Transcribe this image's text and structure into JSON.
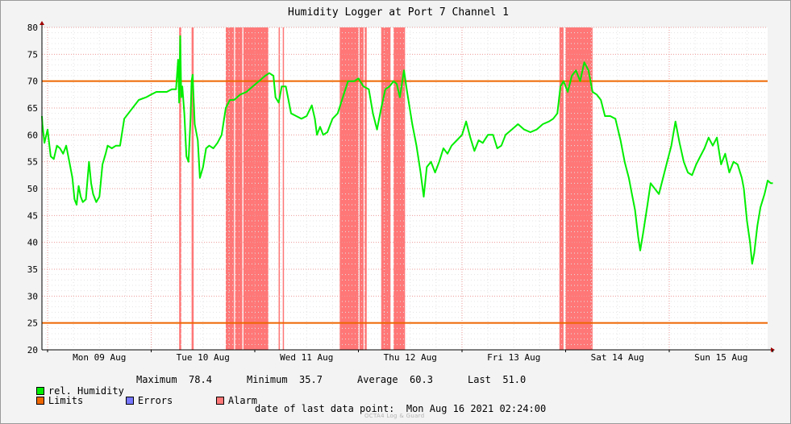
{
  "chart_data": {
    "type": "line",
    "title": "Humidity Logger at Port 7 Channel 1",
    "ylim": [
      20,
      80
    ],
    "yticks": [
      20,
      25,
      30,
      35,
      40,
      45,
      50,
      55,
      60,
      65,
      70,
      75,
      80
    ],
    "x_tick_labels": [
      "Mon 09 Aug",
      "Tue 10 Aug",
      "Wed 11 Aug",
      "Thu 12 Aug",
      "Fri 13 Aug",
      "Sat 14 Aug",
      "Sun 15 Aug"
    ],
    "x_range_days": [
      0,
      7.1
    ],
    "x_unit": "days from Mon 09 Aug 00:00",
    "grid": true,
    "limits": [
      70,
      25
    ],
    "series": [
      {
        "name": "rel. Humidity",
        "color": "#00ee00",
        "points": [
          [
            -0.08,
            63.5
          ],
          [
            -0.05,
            62
          ],
          [
            -0.03,
            58.5
          ],
          [
            0.0,
            61
          ],
          [
            0.03,
            56
          ],
          [
            0.06,
            55.5
          ],
          [
            0.09,
            58
          ],
          [
            0.12,
            57.5
          ],
          [
            0.15,
            56.5
          ],
          [
            0.18,
            58
          ],
          [
            0.21,
            55
          ],
          [
            0.24,
            52
          ],
          [
            0.26,
            48
          ],
          [
            0.28,
            47
          ],
          [
            0.3,
            50.5
          ],
          [
            0.32,
            48.5
          ],
          [
            0.34,
            47.5
          ],
          [
            0.37,
            48
          ],
          [
            0.4,
            55
          ],
          [
            0.42,
            51
          ],
          [
            0.44,
            49
          ],
          [
            0.47,
            47.5
          ],
          [
            0.5,
            48.5
          ],
          [
            0.53,
            54.5
          ],
          [
            0.56,
            56.5
          ],
          [
            0.58,
            58
          ],
          [
            0.62,
            57.5
          ],
          [
            0.66,
            58
          ],
          [
            0.7,
            58
          ],
          [
            0.74,
            63
          ],
          [
            0.8,
            64.5
          ],
          [
            0.88,
            66.5
          ],
          [
            0.95,
            67
          ],
          [
            1.0,
            67.5
          ],
          [
            1.05,
            68
          ],
          [
            1.1,
            68
          ],
          [
            1.15,
            68
          ],
          [
            1.2,
            68.5
          ],
          [
            1.24,
            68.5
          ],
          [
            1.26,
            74
          ],
          [
            1.27,
            66
          ],
          [
            1.28,
            78.4
          ],
          [
            1.29,
            67
          ],
          [
            1.3,
            69
          ],
          [
            1.32,
            64
          ],
          [
            1.34,
            56
          ],
          [
            1.36,
            55
          ],
          [
            1.38,
            63
          ],
          [
            1.39,
            70
          ],
          [
            1.4,
            71.2
          ],
          [
            1.42,
            62
          ],
          [
            1.45,
            59
          ],
          [
            1.47,
            52
          ],
          [
            1.5,
            54
          ],
          [
            1.53,
            57.5
          ],
          [
            1.56,
            58
          ],
          [
            1.6,
            57.5
          ],
          [
            1.64,
            58.5
          ],
          [
            1.68,
            60
          ],
          [
            1.72,
            65
          ],
          [
            1.76,
            66.5
          ],
          [
            1.8,
            66.5
          ],
          [
            1.86,
            67.5
          ],
          [
            1.92,
            68
          ],
          [
            1.98,
            69
          ],
          [
            2.04,
            70
          ],
          [
            2.1,
            71
          ],
          [
            2.14,
            71.5
          ],
          [
            2.18,
            71
          ],
          [
            2.2,
            67
          ],
          [
            2.23,
            66
          ],
          [
            2.26,
            69
          ],
          [
            2.3,
            69
          ],
          [
            2.33,
            66
          ],
          [
            2.35,
            64
          ],
          [
            2.4,
            63.5
          ],
          [
            2.45,
            63
          ],
          [
            2.5,
            63.5
          ],
          [
            2.55,
            65.5
          ],
          [
            2.58,
            63
          ],
          [
            2.6,
            60
          ],
          [
            2.63,
            61.5
          ],
          [
            2.66,
            60
          ],
          [
            2.7,
            60.5
          ],
          [
            2.75,
            63
          ],
          [
            2.8,
            64
          ],
          [
            2.85,
            67
          ],
          [
            2.9,
            70
          ],
          [
            2.96,
            70
          ],
          [
            3.0,
            70.5
          ],
          [
            3.05,
            69
          ],
          [
            3.1,
            68.5
          ],
          [
            3.14,
            64
          ],
          [
            3.18,
            61
          ],
          [
            3.22,
            65
          ],
          [
            3.26,
            68.5
          ],
          [
            3.3,
            69
          ],
          [
            3.34,
            70
          ],
          [
            3.37,
            69.5
          ],
          [
            3.4,
            67
          ],
          [
            3.44,
            72
          ],
          [
            3.47,
            68
          ],
          [
            3.52,
            62
          ],
          [
            3.56,
            58
          ],
          [
            3.6,
            53
          ],
          [
            3.63,
            48.5
          ],
          [
            3.66,
            54
          ],
          [
            3.7,
            55
          ],
          [
            3.74,
            53
          ],
          [
            3.78,
            55
          ],
          [
            3.82,
            57.5
          ],
          [
            3.86,
            56.5
          ],
          [
            3.9,
            58
          ],
          [
            3.95,
            59
          ],
          [
            4.0,
            60
          ],
          [
            4.04,
            62.5
          ],
          [
            4.08,
            59.5
          ],
          [
            4.12,
            57
          ],
          [
            4.16,
            59
          ],
          [
            4.2,
            58.5
          ],
          [
            4.25,
            60
          ],
          [
            4.3,
            60
          ],
          [
            4.34,
            57.5
          ],
          [
            4.38,
            58
          ],
          [
            4.42,
            60
          ],
          [
            4.48,
            61
          ],
          [
            4.54,
            62
          ],
          [
            4.6,
            61
          ],
          [
            4.66,
            60.5
          ],
          [
            4.72,
            61
          ],
          [
            4.78,
            62
          ],
          [
            4.84,
            62.5
          ],
          [
            4.88,
            63
          ],
          [
            4.92,
            64
          ],
          [
            4.95,
            69
          ],
          [
            4.98,
            70
          ],
          [
            5.02,
            68
          ],
          [
            5.06,
            71
          ],
          [
            5.1,
            72
          ],
          [
            5.14,
            70
          ],
          [
            5.18,
            73.5
          ],
          [
            5.22,
            72
          ],
          [
            5.26,
            68
          ],
          [
            5.3,
            67.5
          ],
          [
            5.34,
            66.5
          ],
          [
            5.38,
            63.5
          ],
          [
            5.43,
            63.5
          ],
          [
            5.48,
            63
          ],
          [
            5.53,
            59
          ],
          [
            5.57,
            55
          ],
          [
            5.61,
            52
          ],
          [
            5.64,
            49
          ],
          [
            5.67,
            46
          ],
          [
            5.7,
            41
          ],
          [
            5.72,
            38.5
          ],
          [
            5.75,
            42
          ],
          [
            5.79,
            47
          ],
          [
            5.82,
            51
          ],
          [
            5.86,
            50
          ],
          [
            5.9,
            49
          ],
          [
            5.94,
            52
          ],
          [
            5.98,
            55
          ],
          [
            6.02,
            58
          ],
          [
            6.06,
            62.5
          ],
          [
            6.1,
            58.5
          ],
          [
            6.14,
            55
          ],
          [
            6.18,
            53
          ],
          [
            6.22,
            52.5
          ],
          [
            6.26,
            54.5
          ],
          [
            6.3,
            56
          ],
          [
            6.34,
            57.5
          ],
          [
            6.38,
            59.5
          ],
          [
            6.42,
            58
          ],
          [
            6.46,
            59.5
          ],
          [
            6.5,
            54.5
          ],
          [
            6.54,
            56.5
          ],
          [
            6.58,
            53
          ],
          [
            6.62,
            55
          ],
          [
            6.66,
            54.5
          ],
          [
            6.7,
            52
          ],
          [
            6.72,
            50
          ],
          [
            6.75,
            44
          ],
          [
            6.78,
            40
          ],
          [
            6.8,
            36
          ],
          [
            6.82,
            38
          ],
          [
            6.85,
            43
          ],
          [
            6.88,
            46.5
          ],
          [
            6.92,
            49
          ],
          [
            6.95,
            51.5
          ],
          [
            6.98,
            51
          ],
          [
            7.0,
            51
          ]
        ]
      }
    ],
    "alarm_intervals": [
      [
        1.27,
        1.29
      ],
      [
        1.39,
        1.41
      ],
      [
        1.72,
        1.8
      ],
      [
        1.81,
        1.88
      ],
      [
        1.89,
        2.13
      ],
      [
        2.23,
        2.24
      ],
      [
        2.27,
        2.28
      ],
      [
        2.82,
        3.0
      ],
      [
        3.01,
        3.05
      ],
      [
        3.06,
        3.08
      ],
      [
        3.22,
        3.31
      ],
      [
        3.34,
        3.45
      ],
      [
        4.94,
        4.98
      ],
      [
        5.0,
        5.26
      ]
    ],
    "colors": {
      "humidity": "#00ee00",
      "limits": "#ee6600",
      "alarm": "#ff7777",
      "errors": "#7777ff"
    }
  },
  "legend": {
    "humidity_label": "rel. Humidity",
    "maximum_label": "Maximum",
    "maximum_value": "78.4",
    "minimum_label": "Minimum",
    "minimum_value": "35.7",
    "average_label": "Average",
    "average_value": "60.3",
    "last_label": "Last",
    "last_value": "51.0",
    "limits_label": "Limits",
    "errors_label": "Errors",
    "alarm_label": "Alarm"
  },
  "footer": {
    "date_label": "date of last data point:",
    "date_value": "Mon Aug 16 2021 02:24:00",
    "watermark": "OCTA4 Log & Guard"
  }
}
